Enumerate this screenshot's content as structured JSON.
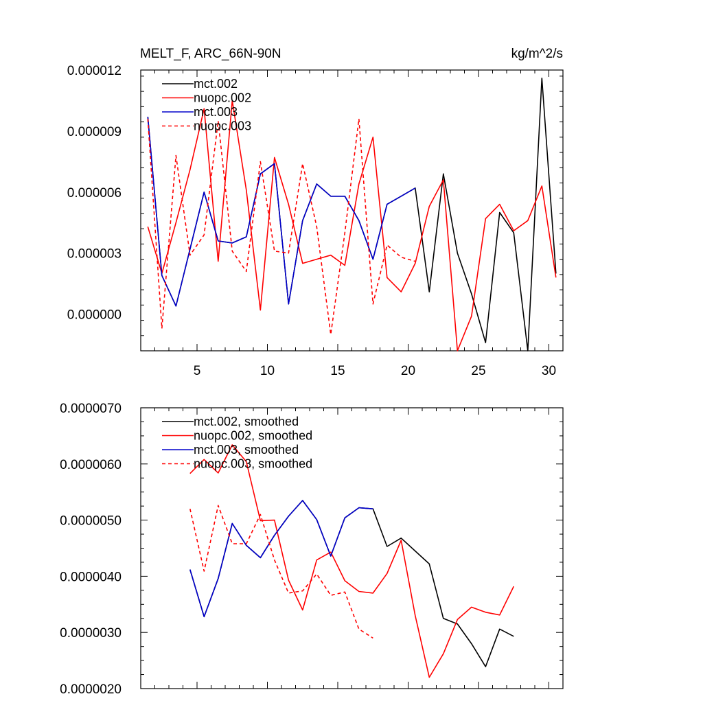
{
  "colors": {
    "black": "#000000",
    "red": "#ff0000",
    "blue": "#0000cc",
    "background": "#ffffff"
  },
  "chart_data": [
    {
      "type": "line",
      "title": "MELT_F, ARC_66N-90N",
      "units": "kg/m^2/s",
      "xlabel": "",
      "ylabel": "",
      "xlim": [
        1,
        31
      ],
      "ylim": [
        -1.8e-06,
        1.2e-05
      ],
      "xticks": [
        5,
        10,
        15,
        20,
        25,
        30
      ],
      "xtick_labels": [
        "5",
        "10",
        "15",
        "20",
        "25",
        "30"
      ],
      "yticks": [
        0,
        3e-06,
        6e-06,
        9e-06,
        1.2e-05
      ],
      "ytick_labels": [
        "0.000000",
        "0.000003",
        "0.000006",
        "0.000009",
        "0.000012"
      ],
      "legend_position": "top-left",
      "series": [
        {
          "name": "mct.002",
          "color": "#000000",
          "dash": "solid",
          "x": [
            1.5,
            2.5,
            3.5,
            4.5,
            5.5,
            6.5,
            7.5,
            8.5,
            9.5,
            10.5,
            11.5,
            12.5,
            13.5,
            14.5,
            15.5,
            16.5,
            17.5,
            18.5,
            19.5,
            20.5,
            21.5,
            22.5,
            23.5,
            24.5,
            25.5,
            26.5,
            27.5,
            28.5,
            29.5,
            30.5
          ],
          "values": [
            9.7e-06,
            1.9e-06,
            4e-07,
            3.2e-06,
            6e-06,
            3.6e-06,
            3.5e-06,
            3.8e-06,
            6.9e-06,
            7.4e-06,
            5e-07,
            4.6e-06,
            6.4e-06,
            5.8e-06,
            5.8e-06,
            4.6e-06,
            2.7e-06,
            5.4e-06,
            5.8e-06,
            6.2e-06,
            1.1e-06,
            6.9e-06,
            3e-06,
            1e-06,
            -1.4e-06,
            5e-06,
            4e-06,
            -1.8e-06,
            1.16e-05,
            2e-06
          ]
        },
        {
          "name": "nuopc.002",
          "color": "#ff0000",
          "dash": "solid",
          "x": [
            1.5,
            2.5,
            3.5,
            4.5,
            5.5,
            6.5,
            7.5,
            8.5,
            9.5,
            10.5,
            11.5,
            12.5,
            13.5,
            14.5,
            15.5,
            16.5,
            17.5,
            18.5,
            19.5,
            20.5,
            21.5,
            22.5,
            23.5,
            24.5,
            25.5,
            26.5,
            27.5,
            28.5,
            29.5,
            30.5
          ],
          "values": [
            4.3e-06,
            2e-06,
            4.5e-06,
            7.1e-06,
            1.01e-05,
            2.6e-06,
            1.05e-05,
            6.1e-06,
            2e-07,
            7.7e-06,
            5.4e-06,
            2.5e-06,
            2.7e-06,
            2.9e-06,
            2.4e-06,
            6.4e-06,
            8.7e-06,
            1.8e-06,
            1.1e-06,
            2.5e-06,
            5.3e-06,
            6.6e-06,
            -1.8e-06,
            -1e-07,
            4.7e-06,
            5.4e-06,
            4.1e-06,
            4.6e-06,
            6.3e-06,
            1.8e-06
          ]
        },
        {
          "name": "mct.003",
          "color": "#0000cc",
          "dash": "solid",
          "x": [
            1.5,
            2.5,
            3.5,
            4.5,
            5.5,
            6.5,
            7.5,
            8.5,
            9.5,
            10.5,
            11.5,
            12.5,
            13.5,
            14.5,
            15.5,
            16.5,
            17.5,
            18.5,
            19.5,
            20.5
          ],
          "values": [
            9.7e-06,
            1.9e-06,
            4e-07,
            3.2e-06,
            6e-06,
            3.6e-06,
            3.5e-06,
            3.8e-06,
            6.9e-06,
            7.4e-06,
            5e-07,
            4.6e-06,
            6.4e-06,
            5.8e-06,
            5.8e-06,
            4.6e-06,
            2.7e-06,
            5.4e-06,
            5.8e-06,
            6.2e-06
          ]
        },
        {
          "name": "nuopc.003",
          "color": "#ff0000",
          "dash": "dashed",
          "x": [
            1.5,
            2.5,
            3.5,
            4.5,
            5.5,
            6.5,
            7.5,
            8.5,
            9.5,
            10.5,
            11.5,
            12.5,
            13.5,
            14.5,
            15.5,
            16.5,
            17.5,
            18.5,
            19.5,
            20.5
          ],
          "values": [
            9.6e-06,
            -7e-07,
            7.8e-06,
            2.9e-06,
            3.9e-06,
            9.5e-06,
            3.1e-06,
            2.1e-06,
            7.5e-06,
            3.1e-06,
            3e-06,
            7.4e-06,
            4.3e-06,
            -1e-06,
            4e-06,
            9.6e-06,
            5e-07,
            3.4e-06,
            2.8e-06,
            2.6e-06
          ]
        }
      ]
    },
    {
      "type": "line",
      "title": "",
      "xlabel": "",
      "ylabel": "",
      "xlim": [
        1,
        31
      ],
      "ylim": [
        2e-06,
        7e-06
      ],
      "xticks": [
        5,
        10,
        15,
        20,
        25,
        30
      ],
      "yticks": [
        2e-06,
        3e-06,
        4e-06,
        5e-06,
        6e-06,
        7e-06
      ],
      "ytick_labels": [
        "0.0000020",
        "0.0000030",
        "0.0000040",
        "0.0000050",
        "0.0000060",
        "0.0000070"
      ],
      "legend_position": "top-left",
      "series": [
        {
          "name": "mct.002, smoothed",
          "color": "#000000",
          "dash": "solid",
          "x": [
            4.5,
            5.5,
            6.5,
            7.5,
            8.5,
            9.5,
            10.5,
            11.5,
            12.5,
            13.5,
            14.5,
            15.5,
            16.5,
            17.5,
            18.5,
            19.5,
            20.5,
            21.5,
            22.5,
            23.5,
            24.5,
            25.5,
            26.5,
            27.5
          ],
          "values": [
            4.12e-06,
            3.28e-06,
            3.96e-06,
            4.94e-06,
            4.55e-06,
            4.33e-06,
            4.73e-06,
            5.07e-06,
            5.35e-06,
            5.01e-06,
            4.36e-06,
            5.04e-06,
            5.22e-06,
            5.2e-06,
            4.53e-06,
            4.68e-06,
            4.45e-06,
            4.22e-06,
            3.25e-06,
            3.15e-06,
            2.8e-06,
            2.39e-06,
            3.06e-06,
            2.93e-06
          ]
        },
        {
          "name": "nuopc.002, smoothed",
          "color": "#ff0000",
          "dash": "solid",
          "x": [
            4.5,
            5.5,
            6.5,
            7.5,
            8.5,
            9.5,
            10.5,
            11.5,
            12.5,
            13.5,
            14.5,
            15.5,
            16.5,
            17.5,
            18.5,
            19.5,
            20.5,
            21.5,
            22.5,
            23.5,
            24.5,
            25.5,
            26.5,
            27.5
          ],
          "values": [
            5.83e-06,
            6.08e-06,
            5.84e-06,
            6.34e-06,
            6.04e-06,
            4.99e-06,
            5e-06,
            3.93e-06,
            3.4e-06,
            4.29e-06,
            4.43e-06,
            3.92e-06,
            3.73e-06,
            3.7e-06,
            4.05e-06,
            4.64e-06,
            3.3e-06,
            2.2e-06,
            2.62e-06,
            3.23e-06,
            3.45e-06,
            3.36e-06,
            3.31e-06,
            3.82e-06
          ]
        },
        {
          "name": "mct.003, smoothed",
          "color": "#0000cc",
          "dash": "solid",
          "x": [
            4.5,
            5.5,
            6.5,
            7.5,
            8.5,
            9.5,
            10.5,
            11.5,
            12.5,
            13.5,
            14.5,
            15.5,
            16.5,
            17.5
          ],
          "values": [
            4.12e-06,
            3.28e-06,
            3.96e-06,
            4.94e-06,
            4.55e-06,
            4.33e-06,
            4.73e-06,
            5.07e-06,
            5.35e-06,
            5.01e-06,
            4.36e-06,
            5.04e-06,
            5.22e-06,
            5.2e-06
          ]
        },
        {
          "name": "nuopc.003, smoothed",
          "color": "#ff0000",
          "dash": "dashed",
          "x": [
            4.5,
            5.5,
            6.5,
            7.5,
            8.5,
            9.5,
            10.5,
            11.5,
            12.5,
            13.5,
            14.5,
            15.5,
            16.5,
            17.5
          ],
          "values": [
            5.2e-06,
            4.09e-06,
            5.26e-06,
            4.58e-06,
            4.58e-06,
            5.1e-06,
            4.29e-06,
            3.7e-06,
            3.74e-06,
            4.04e-06,
            3.66e-06,
            3.72e-06,
            3.06e-06,
            2.9e-06
          ]
        }
      ]
    }
  ]
}
